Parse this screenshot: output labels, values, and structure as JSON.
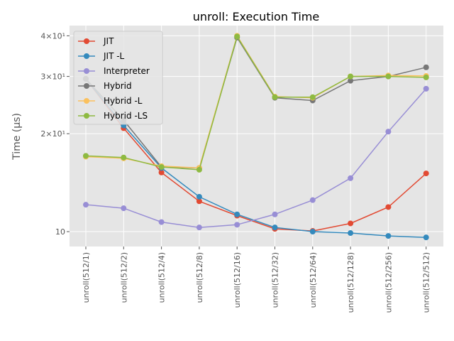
{
  "chart_data": {
    "type": "line",
    "title": "unroll: Execution Time",
    "xlabel": "",
    "ylabel": "Time (μs)",
    "yscale": "log",
    "ylim": [
      9,
      43
    ],
    "y_ticks": [
      {
        "value": 10,
        "label": "10"
      },
      {
        "value": 20,
        "label": "2×10¹"
      },
      {
        "value": 30,
        "label": "3×10¹"
      },
      {
        "value": 40,
        "label": "4×10¹"
      }
    ],
    "grid": true,
    "legend_position": "top-left",
    "categories": [
      "unroll(512/1)",
      "unroll(512/2)",
      "unroll(512/4)",
      "unroll(512/8)",
      "unroll(512/16)",
      "unroll(512/32)",
      "unroll(512/64)",
      "unroll(512/128)",
      "unroll(512/256)",
      "unroll(512/512)"
    ],
    "series": [
      {
        "name": "JIT",
        "color": "#E24A33",
        "values": [
          29.5,
          20.8,
          15.2,
          12.4,
          11.2,
          10.2,
          10.05,
          10.6,
          11.9,
          15.1
        ]
      },
      {
        "name": "JIT -L",
        "color": "#348ABD",
        "values": [
          29.5,
          21.2,
          15.7,
          12.8,
          11.3,
          10.3,
          10.0,
          9.9,
          9.7,
          9.6
        ]
      },
      {
        "name": "Interpreter",
        "color": "#988ED5",
        "values": [
          12.1,
          11.8,
          10.7,
          10.3,
          10.5,
          11.3,
          12.5,
          14.6,
          20.3,
          27.5
        ]
      },
      {
        "name": "Hybrid",
        "color": "#777777",
        "values": [
          29.5,
          22.0,
          15.8,
          15.7,
          39.5,
          25.8,
          25.3,
          29.1,
          30.0,
          32.0
        ]
      },
      {
        "name": "Hybrid -L",
        "color": "#FBC15E",
        "values": [
          17.0,
          16.8,
          15.9,
          15.7,
          40.0,
          26.0,
          25.8,
          30.0,
          30.2,
          30.1
        ]
      },
      {
        "name": "Hybrid -LS",
        "color": "#8EBA42",
        "values": [
          17.1,
          16.9,
          15.8,
          15.5,
          39.8,
          25.9,
          25.9,
          30.0,
          30.0,
          29.8
        ]
      }
    ]
  }
}
